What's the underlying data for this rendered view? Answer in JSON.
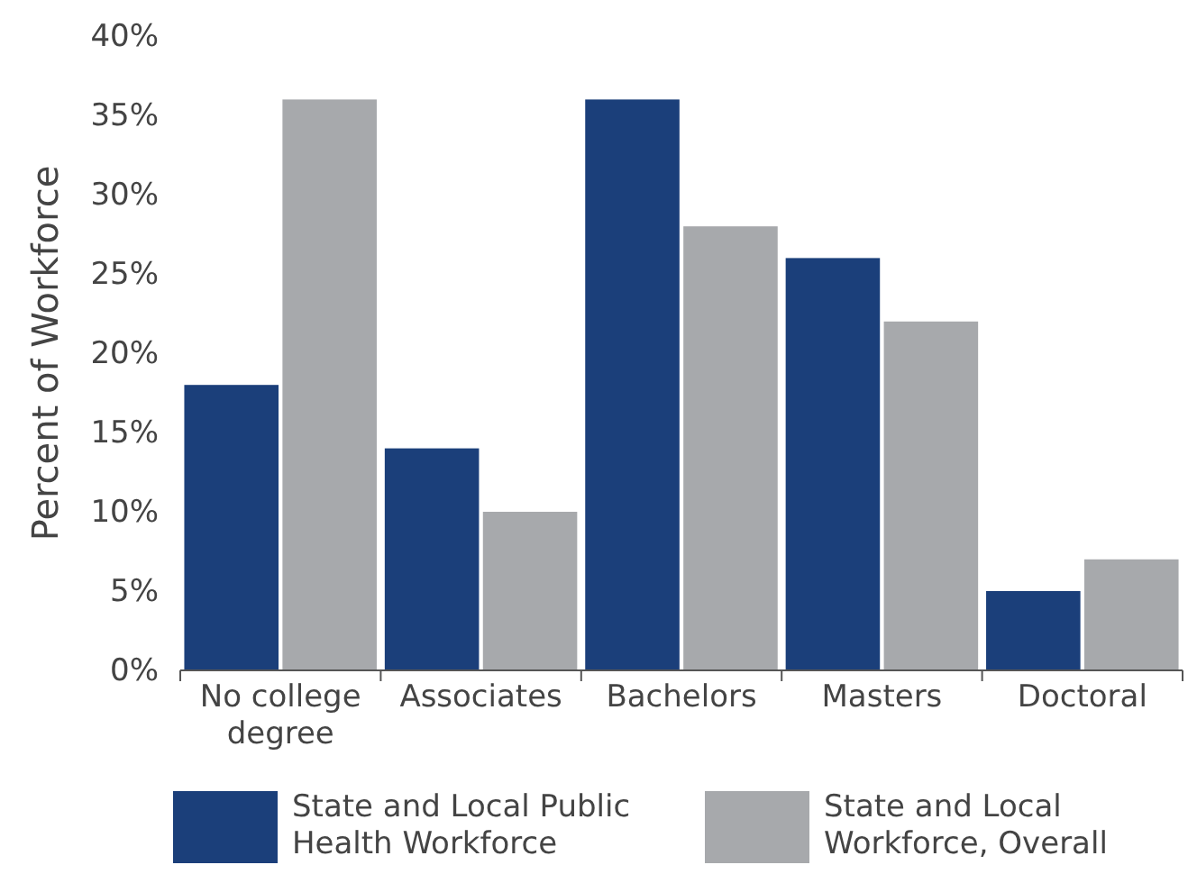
{
  "chart_data": {
    "type": "bar",
    "ylabel": "Percent of Workforce",
    "categories": [
      "No college degree",
      "Associates",
      "Bachelors",
      "Masters",
      "Doctoral"
    ],
    "series": [
      {
        "name": "State and Local Public Health Workforce",
        "color": "#1b3f7a",
        "values": [
          18,
          14,
          36,
          26,
          5
        ]
      },
      {
        "name": "State and Local Workforce, Overall",
        "color": "#a7a9ac",
        "values": [
          36,
          10,
          28,
          22,
          7
        ]
      }
    ],
    "ylim": [
      0,
      40
    ],
    "yticks": [
      {
        "value": 0,
        "label": "0%"
      },
      {
        "value": 5,
        "label": "5%"
      },
      {
        "value": 10,
        "label": "10%"
      },
      {
        "value": 15,
        "label": "15%"
      },
      {
        "value": 20,
        "label": "20%"
      },
      {
        "value": 25,
        "label": "25%"
      },
      {
        "value": 30,
        "label": "30%"
      },
      {
        "value": 35,
        "label": "35%"
      },
      {
        "value": 40,
        "label": "40%"
      }
    ],
    "grid": false,
    "legend": "bottom"
  }
}
